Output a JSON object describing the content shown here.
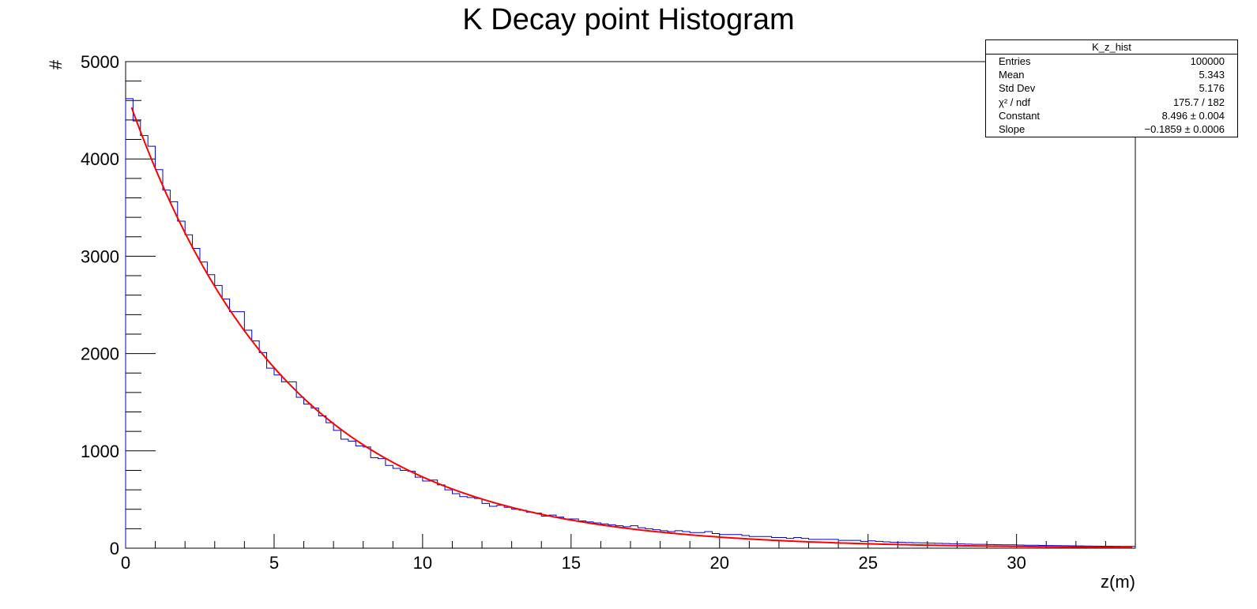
{
  "chart_data": {
    "type": "histogram",
    "title": "K Decay point Histogram",
    "xlabel": "z(m)",
    "ylabel": "#",
    "xlim": [
      0,
      34
    ],
    "ylim": [
      0,
      5000
    ],
    "xticks": [
      0,
      5,
      10,
      15,
      20,
      25,
      30
    ],
    "yticks": [
      0,
      1000,
      2000,
      3000,
      4000,
      5000
    ],
    "bin_width": 0.25,
    "histogram_color": "#0000cc",
    "fit_color": "#ff0000",
    "bins_sample": [
      4620,
      4390,
      4240,
      4130,
      3890,
      3680,
      3560,
      3360,
      3220,
      3080,
      2940,
      2810,
      2700,
      2560,
      2430,
      2430,
      2240,
      2130,
      2010,
      1850,
      1780,
      1710,
      1710,
      1550,
      1480,
      1440,
      1360,
      1290,
      1210,
      1120,
      1100,
      1050,
      1040,
      930,
      920,
      850,
      820,
      800,
      790,
      730,
      690,
      700,
      650,
      600,
      560,
      530,
      520,
      510,
      460,
      430,
      440,
      420,
      400,
      390,
      370,
      360,
      330,
      340,
      320,
      300,
      300,
      280,
      270,
      260,
      250,
      240,
      230,
      220,
      230,
      210,
      200,
      190,
      180,
      170,
      180,
      170,
      160,
      160,
      170,
      150,
      140,
      140,
      140,
      130,
      120,
      120,
      120,
      110,
      110,
      100,
      110,
      100,
      90,
      90,
      90,
      90,
      80,
      80,
      80,
      70,
      75,
      70,
      65,
      60,
      60,
      58,
      56,
      55,
      52,
      50,
      48,
      46,
      44,
      42,
      40,
      40,
      38,
      36,
      35,
      34,
      32,
      30,
      30,
      28,
      27,
      26,
      25,
      24,
      23,
      22,
      21,
      20,
      20,
      19,
      18,
      18,
      17,
      16,
      15,
      15
    ],
    "fit": {
      "function": "expo",
      "constant": 8.496,
      "slope": -0.1859
    }
  },
  "stats_box": {
    "name": "K_z_hist",
    "rows": [
      {
        "label": "Entries",
        "value": "100000"
      },
      {
        "label": "Mean",
        "value": "5.343"
      },
      {
        "label": "Std Dev",
        "value": "5.176"
      },
      {
        "label": "χ² / ndf",
        "value": "175.7 / 182"
      },
      {
        "label": "Constant",
        "value": "8.496 ± 0.004"
      },
      {
        "label": "Slope",
        "value": "−0.1859 ± 0.0006"
      }
    ]
  }
}
